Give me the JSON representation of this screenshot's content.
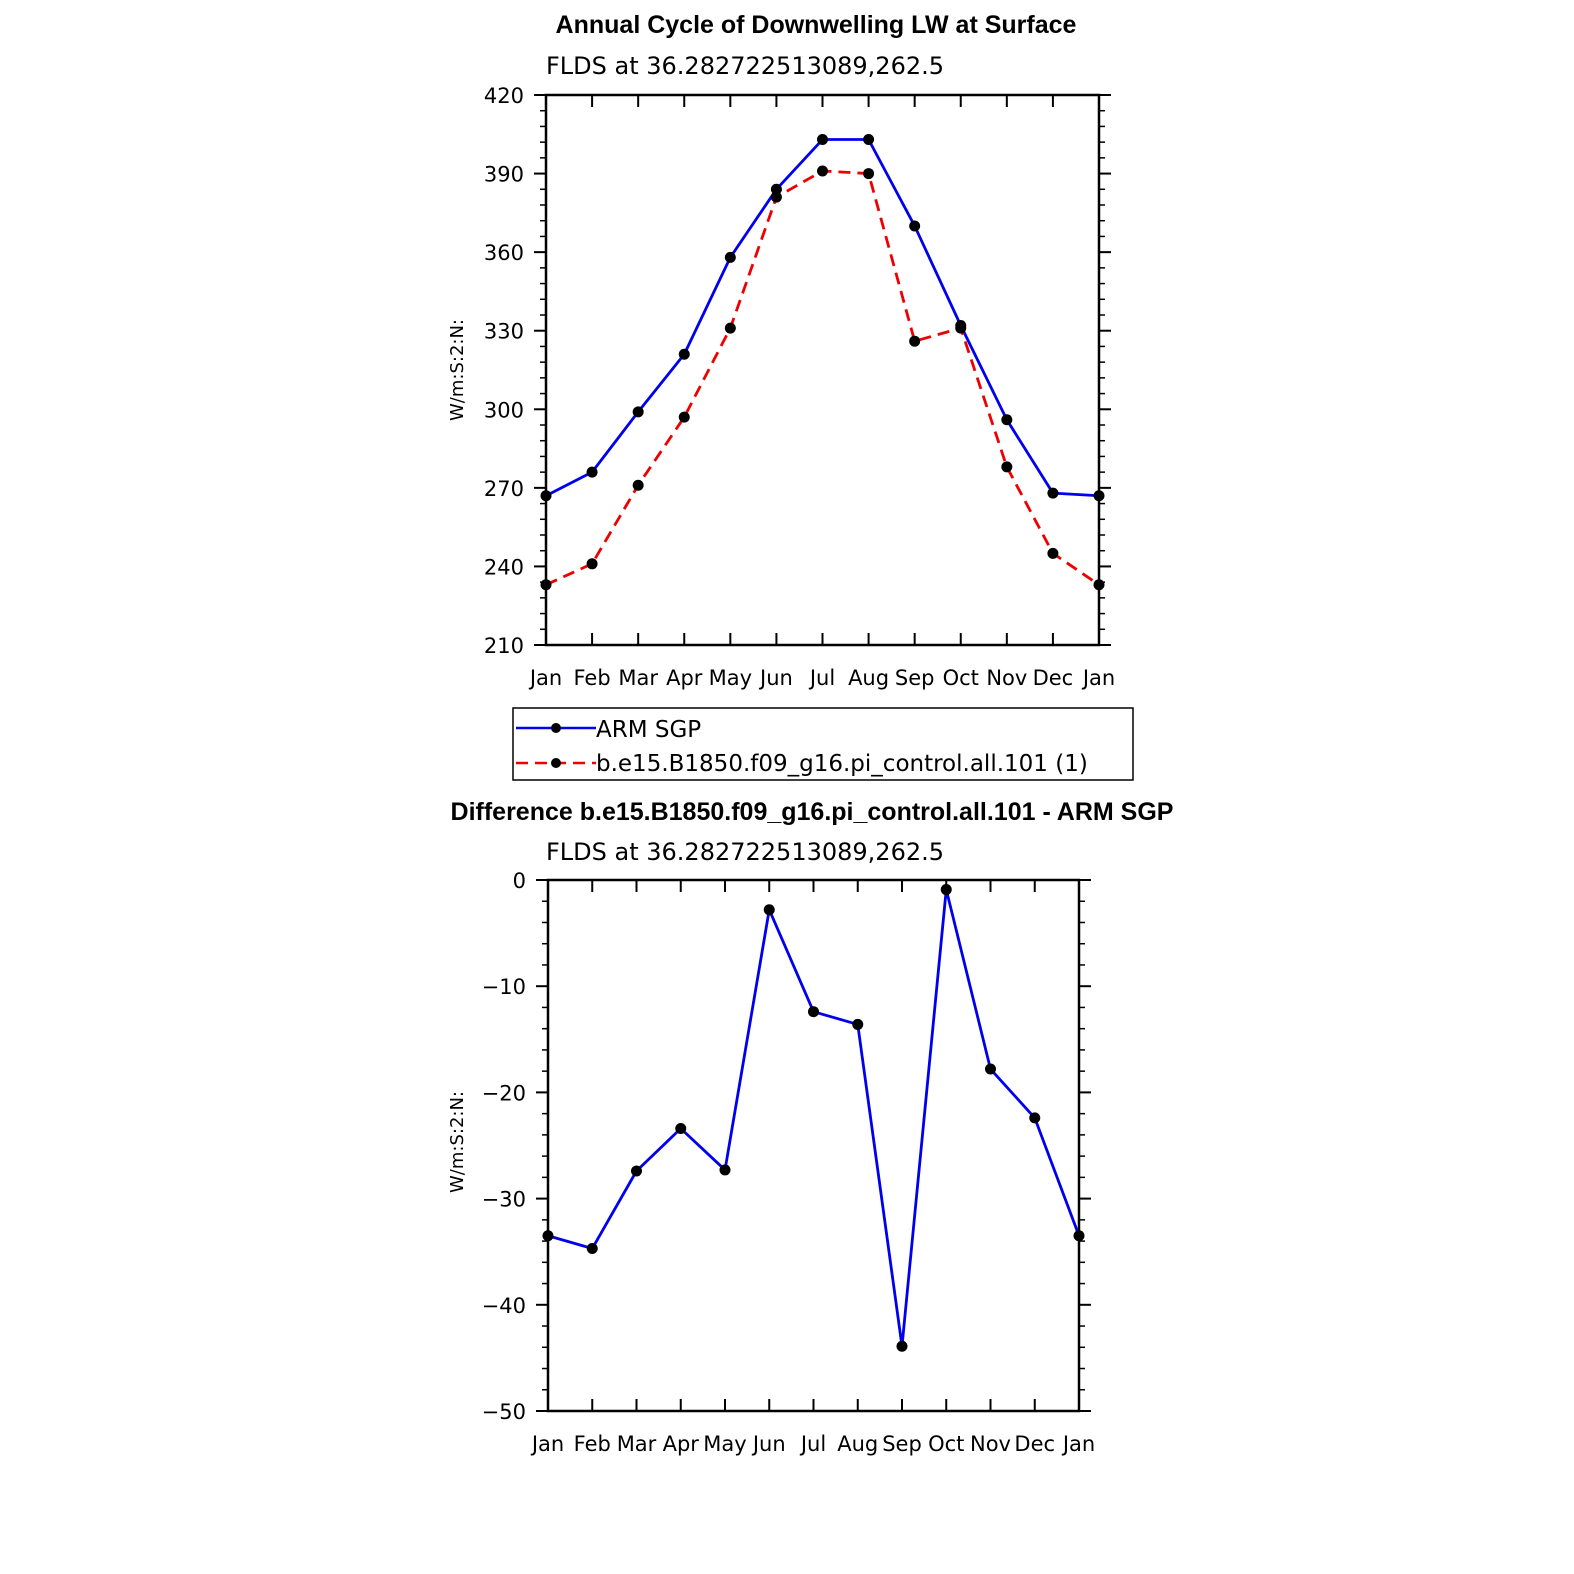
{
  "chart_data": [
    {
      "type": "line",
      "title": "Annual Cycle of Downwelling LW at Surface",
      "subtitle": "FLDS at 36.282722513089,262.5",
      "xlabel": "",
      "ylabel": "W/m:S:2:N:",
      "categories": [
        "Jan",
        "Feb",
        "Mar",
        "Apr",
        "May",
        "Jun",
        "Jul",
        "Aug",
        "Sep",
        "Oct",
        "Nov",
        "Dec",
        "Jan"
      ],
      "ylim": [
        210,
        420
      ],
      "yticks": [
        210,
        240,
        270,
        300,
        330,
        360,
        390,
        420
      ],
      "series": [
        {
          "name": "ARM SGP",
          "color": "#0000ee",
          "dash": "solid",
          "values": [
            267,
            276,
            299,
            321,
            358,
            384,
            403,
            403,
            370,
            332,
            296,
            268,
            267
          ]
        },
        {
          "name": "b.e15.B1850.f09_g16.pi_control.all.101 (1)",
          "color": "#ee0000",
          "dash": "dashed",
          "values": [
            233,
            241,
            271,
            297,
            331,
            381,
            391,
            390,
            326,
            331,
            278,
            245,
            233
          ]
        }
      ],
      "legend": {
        "position": "below",
        "entries": [
          "ARM SGP",
          "b.e15.B1850.f09_g16.pi_control.all.101 (1)"
        ]
      }
    },
    {
      "type": "line",
      "title": "Difference b.e15.B1850.f09_g16.pi_control.all.101 - ARM SGP",
      "subtitle": "FLDS at 36.282722513089,262.5",
      "xlabel": "",
      "ylabel": "W/m:S:2:N:",
      "categories": [
        "Jan",
        "Feb",
        "Mar",
        "Apr",
        "May",
        "Jun",
        "Jul",
        "Aug",
        "Sep",
        "Oct",
        "Nov",
        "Dec",
        "Jan"
      ],
      "ylim": [
        -50,
        0
      ],
      "yticks": [
        -50,
        -40,
        -30,
        -20,
        -10,
        0
      ],
      "ytick_labels": [
        "−50",
        "−40",
        "−30",
        "−20",
        "−10",
        "0"
      ],
      "series": [
        {
          "name": "difference",
          "color": "#0000ee",
          "dash": "solid",
          "values": [
            -33.5,
            -34.7,
            -27.4,
            -23.4,
            -27.3,
            -2.8,
            -12.4,
            -13.6,
            -43.9,
            -0.9,
            -17.8,
            -22.4,
            -33.5
          ]
        }
      ]
    }
  ]
}
